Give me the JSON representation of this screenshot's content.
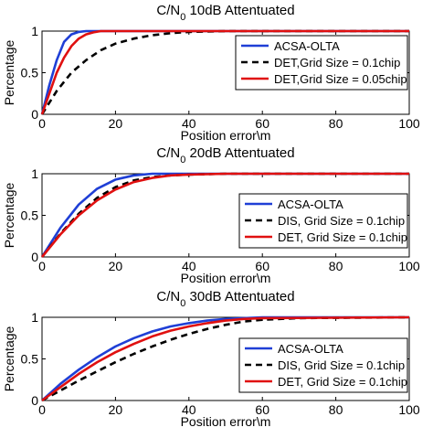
{
  "chart_data": [
    {
      "type": "line",
      "title": "C/N0 10dB Attentuated",
      "title_main": "C/N",
      "title_sub": "0",
      "title_rest": " 10dB Attentuated",
      "xlabel": "Position error\\m",
      "ylabel": "Percentage",
      "xlim": [
        0,
        100
      ],
      "ylim": [
        0,
        1
      ],
      "xticks": [
        0,
        20,
        40,
        60,
        80,
        100
      ],
      "yticks": [
        0,
        0.5,
        1
      ],
      "ytick_labels": [
        "0",
        "0.5",
        "1"
      ],
      "legend_position": "top-right",
      "grid": false,
      "series": [
        {
          "name": "ACSA-OLTA",
          "color": "#1f3fd6",
          "style": "solid",
          "x": [
            0,
            2,
            4,
            6,
            8,
            10,
            12,
            15,
            20,
            100
          ],
          "y": [
            0,
            0.35,
            0.65,
            0.87,
            0.96,
            0.99,
            1.0,
            1.0,
            1.0,
            1.0
          ]
        },
        {
          "name": "DET,Grid Size = 0.1chip",
          "color": "#000000",
          "style": "dashed",
          "x": [
            0,
            4,
            8,
            12,
            16,
            20,
            25,
            30,
            35,
            40,
            50,
            60,
            100
          ],
          "y": [
            0,
            0.28,
            0.5,
            0.65,
            0.77,
            0.85,
            0.91,
            0.95,
            0.975,
            0.99,
            1.0,
            1.0,
            1.0
          ]
        },
        {
          "name": "DET,Grid Size = 0.05chip",
          "color": "#e01010",
          "style": "solid",
          "x": [
            0,
            2,
            4,
            6,
            8,
            10,
            12,
            14,
            16,
            20,
            100
          ],
          "y": [
            0,
            0.25,
            0.5,
            0.68,
            0.82,
            0.91,
            0.96,
            0.985,
            1.0,
            1.0,
            1.0
          ]
        }
      ]
    },
    {
      "type": "line",
      "title": "C/N0 20dB Attentuated",
      "title_main": "C/N",
      "title_sub": "0",
      "title_rest": " 20dB Attentuated",
      "xlabel": "Position error\\m",
      "ylabel": "Percentage",
      "xlim": [
        0,
        100
      ],
      "ylim": [
        0,
        1
      ],
      "xticks": [
        0,
        20,
        40,
        60,
        80,
        100
      ],
      "yticks": [
        0,
        0.5,
        1
      ],
      "ytick_labels": [
        "0",
        "0.5",
        "1"
      ],
      "legend_position": "right",
      "grid": false,
      "series": [
        {
          "name": "ACSA-OLTA",
          "color": "#1f3fd6",
          "style": "solid",
          "x": [
            0,
            5,
            10,
            15,
            20,
            25,
            30,
            35,
            40,
            100
          ],
          "y": [
            0,
            0.35,
            0.63,
            0.82,
            0.93,
            0.98,
            1.0,
            1.0,
            1.0,
            1.0
          ]
        },
        {
          "name": "DIS, Grid Size = 0.1chip",
          "color": "#000000",
          "style": "dashed",
          "x": [
            0,
            5,
            10,
            15,
            20,
            25,
            30,
            35,
            40,
            50,
            60,
            100
          ],
          "y": [
            0,
            0.28,
            0.52,
            0.71,
            0.84,
            0.92,
            0.96,
            0.98,
            0.99,
            1.0,
            1.0,
            1.0
          ]
        },
        {
          "name": "DET, Grid Size = 0.1chip",
          "color": "#e01010",
          "style": "solid",
          "x": [
            0,
            5,
            10,
            15,
            20,
            25,
            30,
            35,
            40,
            50,
            60,
            100
          ],
          "y": [
            0,
            0.27,
            0.5,
            0.68,
            0.81,
            0.9,
            0.95,
            0.98,
            0.99,
            1.0,
            1.0,
            1.0
          ]
        }
      ]
    },
    {
      "type": "line",
      "title": "C/N0 30dB Attentuated",
      "title_main": "C/N",
      "title_sub": "0",
      "title_rest": " 30dB Attentuated",
      "xlabel": "Position error\\m",
      "ylabel": "Percentage",
      "xlim": [
        0,
        100
      ],
      "ylim": [
        0,
        1
      ],
      "xticks": [
        0,
        20,
        40,
        60,
        80,
        100
      ],
      "yticks": [
        0,
        0.5,
        1
      ],
      "ytick_labels": [
        "0",
        "0.5",
        "1"
      ],
      "legend_position": "right",
      "grid": false,
      "series": [
        {
          "name": "ACSA-OLTA",
          "color": "#1f3fd6",
          "style": "solid",
          "x": [
            0,
            5,
            10,
            15,
            20,
            25,
            30,
            35,
            40,
            45,
            50,
            55,
            60,
            100
          ],
          "y": [
            0,
            0.2,
            0.37,
            0.52,
            0.65,
            0.75,
            0.83,
            0.89,
            0.93,
            0.96,
            0.98,
            0.99,
            1.0,
            1.0
          ]
        },
        {
          "name": "DIS, Grid Size = 0.1chip",
          "color": "#000000",
          "style": "dashed",
          "x": [
            0,
            5,
            10,
            15,
            20,
            25,
            30,
            35,
            40,
            45,
            50,
            55,
            60,
            70,
            100
          ],
          "y": [
            0,
            0.12,
            0.24,
            0.35,
            0.46,
            0.56,
            0.65,
            0.73,
            0.8,
            0.86,
            0.91,
            0.95,
            0.97,
            0.99,
            1.0
          ]
        },
        {
          "name": "DET, Grid Size = 0.1chip",
          "color": "#e01010",
          "style": "solid",
          "x": [
            0,
            5,
            10,
            15,
            20,
            25,
            30,
            35,
            40,
            45,
            50,
            55,
            60,
            100
          ],
          "y": [
            0,
            0.16,
            0.32,
            0.46,
            0.58,
            0.68,
            0.77,
            0.84,
            0.89,
            0.93,
            0.96,
            0.98,
            0.99,
            1.0
          ]
        }
      ]
    }
  ]
}
